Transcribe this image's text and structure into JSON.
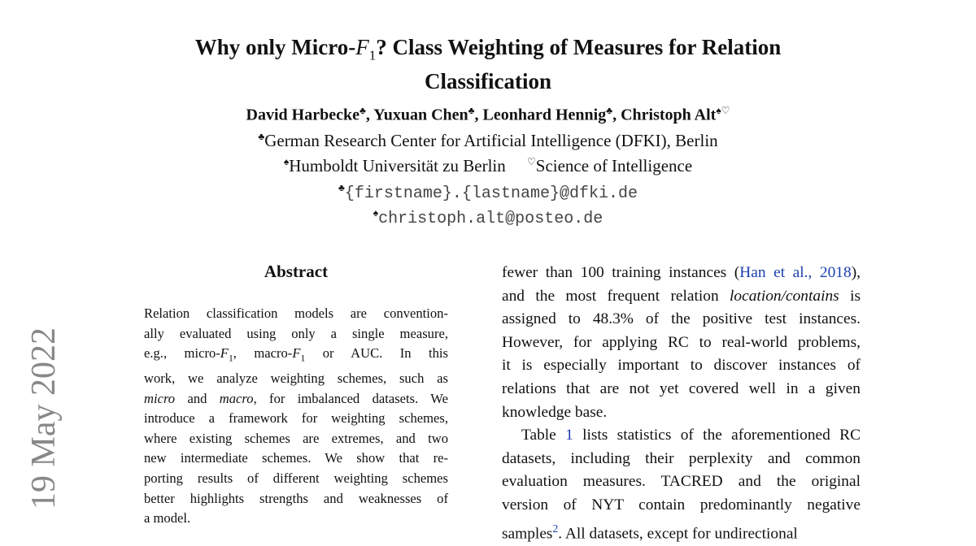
{
  "stamp": "19 May 2022",
  "title": {
    "pre": "Why only Micro-",
    "math": "F",
    "sub": "1",
    "post": "? Class Weighting of Measures for Relation",
    "line2": "Classification"
  },
  "authors": [
    {
      "name": "David Harbecke",
      "mark": "♣"
    },
    {
      "name": "Yuxuan Chen",
      "mark": "♣"
    },
    {
      "name": "Leonhard Hennig",
      "mark": "♣"
    },
    {
      "name": "Christoph Alt",
      "mark": "♠♡"
    }
  ],
  "affiliations": {
    "dfki_mark": "♣",
    "dfki": "German Research Center for Artificial Intelligence (DFKI), Berlin",
    "hu_mark": "♠",
    "hu": "Humboldt Universität zu Berlin",
    "soi_mark": "♡",
    "soi": "Science of Intelligence",
    "email1_mark": "♣",
    "email1": "{firstname}.{lastname}@dfki.de",
    "email2_mark": "♠",
    "email2": "christoph.alt@posteo.de"
  },
  "abstract": {
    "heading": "Abstract",
    "lines": [
      [
        {
          "t": "Relation classification models are convention-"
        }
      ],
      [
        {
          "t": "ally evaluated using only a single measure,"
        }
      ],
      [
        {
          "t": "e.g., micro-"
        },
        {
          "t": "F",
          "i": true
        },
        {
          "t": "1",
          "sub": true
        },
        {
          "t": ", macro-"
        },
        {
          "t": "F",
          "i": true
        },
        {
          "t": "1",
          "sub": true
        },
        {
          "t": " or AUC. In this"
        }
      ],
      [
        {
          "t": "work, we analyze weighting schemes, such as"
        }
      ],
      [
        {
          "t": "micro",
          "i": true
        },
        {
          "t": " and "
        },
        {
          "t": "macro",
          "i": true
        },
        {
          "t": ", for imbalanced datasets. We"
        }
      ],
      [
        {
          "t": "introduce a framework for weighting schemes,"
        }
      ],
      [
        {
          "t": "where existing schemes are extremes, and two"
        }
      ],
      [
        {
          "t": "new intermediate schemes.  We show that re-"
        }
      ],
      [
        {
          "t": "porting results of different weighting schemes"
        }
      ],
      [
        {
          "t": "better highlights strengths and weaknesses of"
        }
      ],
      [
        {
          "t": "a model."
        }
      ]
    ]
  },
  "body": {
    "lines": [
      [
        {
          "t": "fewer than 100 training instances ("
        },
        {
          "t": "Han et al., 2018",
          "a": true
        },
        {
          "t": "),"
        }
      ],
      [
        {
          "t": "and the most frequent relation "
        },
        {
          "t": "location/contains",
          "i": true
        },
        {
          "t": " is"
        }
      ],
      [
        {
          "t": "assigned to 48.3% of the positive test instances."
        }
      ],
      [
        {
          "t": "However, for applying RC to real-world problems,"
        }
      ],
      [
        {
          "t": "it is especially important to discover instances of"
        }
      ],
      [
        {
          "t": "relations that are not yet covered well in a given"
        }
      ],
      [
        {
          "t": "knowledge base."
        }
      ],
      [
        {
          "t": "Table "
        },
        {
          "t": "1",
          "a": true
        },
        {
          "t": " lists statistics of the aforementioned RC"
        }
      ],
      [
        {
          "t": "datasets, including their perplexity and common"
        }
      ],
      [
        {
          "t": "evaluation measures.  TACRED and the original"
        }
      ],
      [
        {
          "t": "version of NYT contain predominantly negative"
        }
      ],
      [
        {
          "t": "samples"
        },
        {
          "t": "2",
          "a": true,
          "sup": true
        },
        {
          "t": ".  All datasets, except for undirectional"
        }
      ]
    ]
  }
}
